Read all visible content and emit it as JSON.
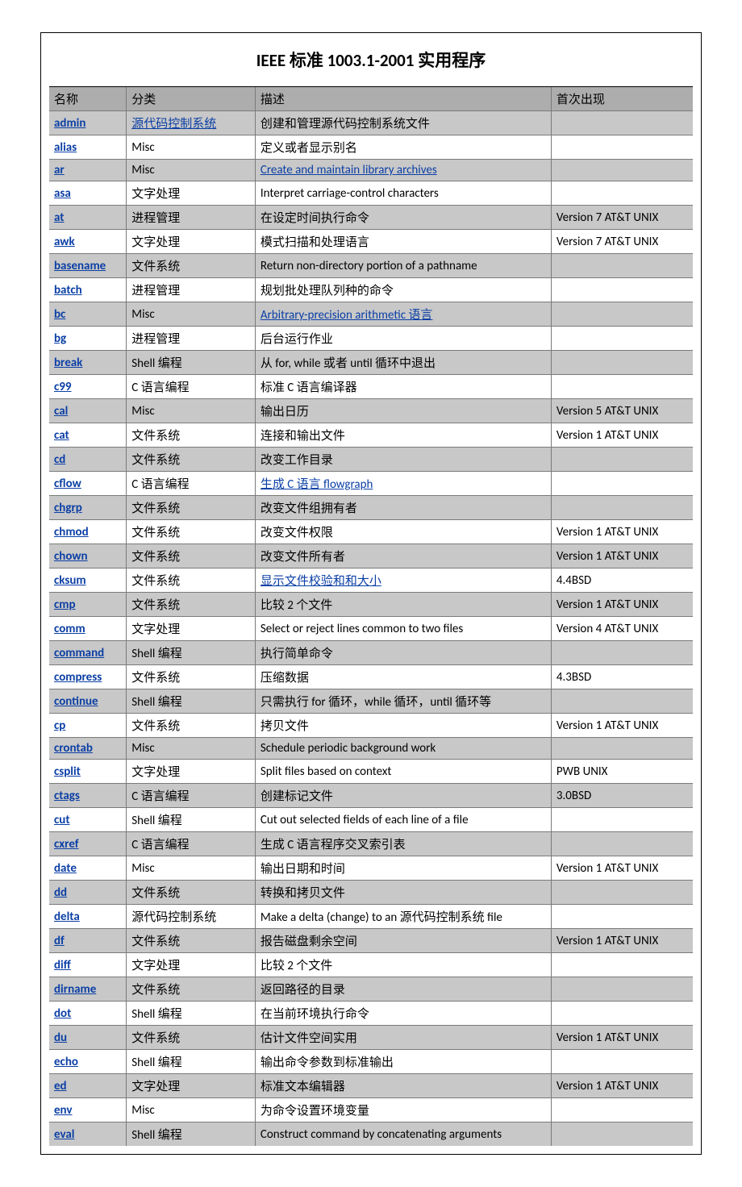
{
  "title": "IEEE 标准 1003.1-2001  实用程序",
  "colors": {
    "header_bg": "#adadad",
    "shaded_row_bg": "#c8c8c8",
    "plain_row_bg": "#ffffff",
    "border": "#7a7a7a",
    "outer_border": "#000000",
    "link": "#0b3fa5",
    "text": "#000000"
  },
  "columns": [
    "名称",
    "分类",
    "描述",
    "首次出现"
  ],
  "rows": [
    {
      "name": "admin",
      "cat": "源代码控制系统",
      "cat_link": true,
      "desc": "创建和管理源代码控制系统文件",
      "first": ""
    },
    {
      "name": "alias",
      "cat": "Misc",
      "desc": "定义或者显示别名",
      "first": ""
    },
    {
      "name": "ar",
      "cat": "Misc",
      "desc": "Create and maintain library archives",
      "desc_link": true,
      "first": ""
    },
    {
      "name": "asa",
      "cat": "文字处理",
      "desc": "Interpret carriage-control characters",
      "first": ""
    },
    {
      "name": "at",
      "cat": "进程管理",
      "desc": "在设定时间执行命令",
      "first": "Version 7 AT&T UNIX"
    },
    {
      "name": "awk",
      "cat": "文字处理",
      "desc": "模式扫描和处理语言",
      "first": "Version 7 AT&T UNIX"
    },
    {
      "name": "basename",
      "cat": "文件系统",
      "desc": "Return non-directory portion of a pathname",
      "first": ""
    },
    {
      "name": "batch",
      "cat": "进程管理",
      "desc": "规划批处理队列种的命令",
      "first": ""
    },
    {
      "name": "bc",
      "cat": "Misc",
      "desc": "Arbitrary-precision arithmetic  语言",
      "desc_link": true,
      "first": ""
    },
    {
      "name": "bg",
      "cat": "进程管理",
      "desc": "后台运行作业",
      "first": ""
    },
    {
      "name": "break",
      "cat": "Shell 编程",
      "desc": "从 for, while 或者  until  循环中退出",
      "first": ""
    },
    {
      "name": "c99",
      "cat": "C 语言编程",
      "desc": "标准 C 语言编译器",
      "first": ""
    },
    {
      "name": "cal",
      "cat": "Misc",
      "desc": "输出日历",
      "first": "Version 5 AT&T UNIX"
    },
    {
      "name": "cat",
      "cat": "文件系统",
      "desc": "连接和输出文件",
      "first": "Version 1 AT&T UNIX"
    },
    {
      "name": "cd",
      "cat": "文件系统",
      "desc": "改变工作目录",
      "first": ""
    },
    {
      "name": "cflow",
      "cat": "C 语言编程",
      "desc": "生成 C 语言  flowgraph",
      "desc_link": true,
      "first": ""
    },
    {
      "name": "chgrp",
      "cat": "文件系统",
      "desc": "改变文件组拥有者",
      "first": ""
    },
    {
      "name": "chmod",
      "cat": "文件系统",
      "desc": "改变文件权限",
      "first": "Version 1 AT&T UNIX"
    },
    {
      "name": "chown",
      "cat": "文件系统",
      "desc": "改变文件所有者",
      "first": "Version 1 AT&T UNIX"
    },
    {
      "name": "cksum",
      "cat": "文件系统",
      "desc": "显示文件校验和和大小",
      "desc_link": true,
      "first": "4.4BSD"
    },
    {
      "name": "cmp",
      "cat": "文件系统",
      "desc": "比较 2 个文件",
      "first": "Version 1 AT&T UNIX"
    },
    {
      "name": "comm",
      "cat": "文字处理",
      "desc": "Select or reject lines common to two files",
      "first": "Version 4 AT&T UNIX"
    },
    {
      "name": "command",
      "cat": "Shell 编程",
      "desc": "执行简单命令",
      "first": ""
    },
    {
      "name": "compress",
      "cat": "文件系统",
      "desc": "压缩数据",
      "first": "4.3BSD"
    },
    {
      "name": "continue",
      "cat": "Shell 编程",
      "desc": "只需执行 for 循环，while 循环，until 循环等",
      "first": ""
    },
    {
      "name": "cp",
      "cat": "文件系统",
      "desc": "拷贝文件",
      "first": "Version 1 AT&T UNIX"
    },
    {
      "name": "crontab",
      "cat": "Misc",
      "desc": "Schedule periodic background work",
      "first": ""
    },
    {
      "name": "csplit",
      "cat": "文字处理",
      "desc": "Split files based on context",
      "first": "PWB UNIX"
    },
    {
      "name": "ctags",
      "cat": "C 语言编程",
      "desc": "创建标记文件",
      "first": "3.0BSD"
    },
    {
      "name": "cut",
      "cat": "Shell 编程",
      "desc": "Cut out selected fields of each line of a file",
      "first": ""
    },
    {
      "name": "cxref",
      "cat": "C 语言编程",
      "desc": "生成 C 语言程序交叉索引表",
      "first": ""
    },
    {
      "name": "date",
      "cat": "Misc",
      "desc": "输出日期和时间",
      "first": "Version 1 AT&T UNIX"
    },
    {
      "name": "dd",
      "cat": "文件系统",
      "desc": "转换和拷贝文件",
      "first": ""
    },
    {
      "name": "delta",
      "cat": "源代码控制系统",
      "desc": "Make a delta (change) to an  源代码控制系统  file",
      "first": ""
    },
    {
      "name": "df",
      "cat": "文件系统",
      "desc": "报告磁盘剩余空间",
      "first": "Version 1 AT&T UNIX"
    },
    {
      "name": "diff",
      "cat": "文字处理",
      "desc": "比较 2 个文件",
      "first": ""
    },
    {
      "name": "dirname",
      "cat": "文件系统",
      "desc": "返回路径的目录",
      "first": ""
    },
    {
      "name": "dot",
      "cat": "Shell 编程",
      "desc": "在当前环境执行命令",
      "first": ""
    },
    {
      "name": "du",
      "cat": "文件系统",
      "desc": "估计文件空间实用",
      "first": "Version 1 AT&T UNIX"
    },
    {
      "name": "echo",
      "cat": "Shell 编程",
      "desc": "输出命令参数到标准输出",
      "first": ""
    },
    {
      "name": "ed",
      "cat": "文字处理",
      "desc": "标准文本编辑器",
      "first": "Version 1 AT&T UNIX"
    },
    {
      "name": "env",
      "cat": "Misc",
      "desc": "为命令设置环境变量",
      "first": ""
    },
    {
      "name": "eval",
      "cat": "Shell 编程",
      "desc": "Construct command by concatenating arguments",
      "first": ""
    }
  ]
}
